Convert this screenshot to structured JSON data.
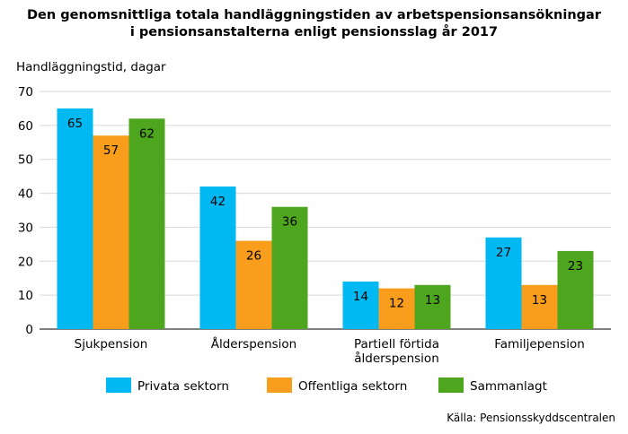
{
  "chart_data": {
    "type": "bar",
    "title": [
      "Den genomsnittliga totala handläggningstiden av arbetspensionsansökningar",
      "i pensionsanstalterna enligt pensionsslag år 2017"
    ],
    "ylabel": "Handläggningstid, dagar",
    "xlabel": "",
    "ylim": [
      0,
      70
    ],
    "yticks": [
      0,
      10,
      20,
      30,
      40,
      50,
      60,
      70
    ],
    "grid": true,
    "legend_position": "bottom",
    "categories": [
      [
        "Sjukpension"
      ],
      [
        "Ålderspension"
      ],
      [
        "Partiell förtida",
        "ålderspension"
      ],
      [
        "Familjepension"
      ]
    ],
    "series": [
      {
        "name": "Privata sektorn",
        "color": "#00b9f2",
        "values": [
          65,
          42,
          14,
          27
        ]
      },
      {
        "name": "Offentliga sektorn",
        "color": "#f99d1c",
        "values": [
          57,
          26,
          12,
          13
        ]
      },
      {
        "name": "Sammanlagt",
        "color": "#4ea51e",
        "values": [
          62,
          36,
          13,
          23
        ]
      }
    ]
  },
  "source": "Källa: Pensionsskyddscentralen"
}
